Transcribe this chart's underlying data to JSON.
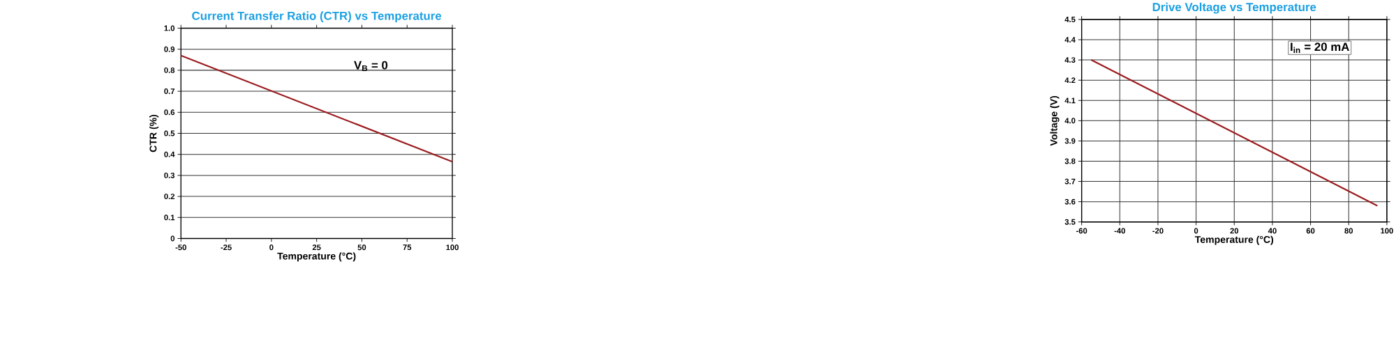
{
  "chart_data": [
    {
      "type": "line",
      "title": "Current Transfer Ratio (CTR) vs Temperature",
      "xlabel": "Temperature (°C)",
      "ylabel": "CTR (%)",
      "x": [
        -50,
        100
      ],
      "series": [
        {
          "color": "#9b1c1f",
          "values": [
            0.87,
            0.365
          ]
        }
      ],
      "xlim": [
        -50,
        100
      ],
      "xticks": [
        -50,
        -25,
        0,
        25,
        50,
        75,
        100
      ],
      "ylim": [
        0,
        1
      ],
      "yticks": [
        0,
        0.1,
        0.2,
        0.3,
        0.4,
        0.5,
        0.6,
        0.7,
        0.8,
        0.9,
        {
          "value": 1,
          "label": "1.0"
        }
      ],
      "grid": "y",
      "annotations": [
        "V$_{B}$ = 0"
      ]
    },
    {
      "type": "line",
      "title": "Drive Voltage vs Temperature",
      "xlabel": "Temperature (°C)",
      "ylabel": "Voltage (V)",
      "x": [
        -55,
        95
      ],
      "series": [
        {
          "color": "#9b1c1f",
          "values": [
            4.3,
            3.58
          ]
        }
      ],
      "xlim": [
        -60,
        100
      ],
      "xticks": [
        -60,
        -40,
        -20,
        0,
        20,
        40,
        60,
        80,
        100
      ],
      "ylim": [
        3.5,
        4.5
      ],
      "yticks": [
        3.5,
        3.6,
        3.7,
        3.8,
        3.9,
        {
          "value": 4,
          "label": "4.0"
        },
        4.1,
        4.2,
        4.3,
        4.4,
        4.5
      ],
      "grid": true,
      "annotations": [
        "I$_{in}$ = 20 mA"
      ]
    }
  ]
}
